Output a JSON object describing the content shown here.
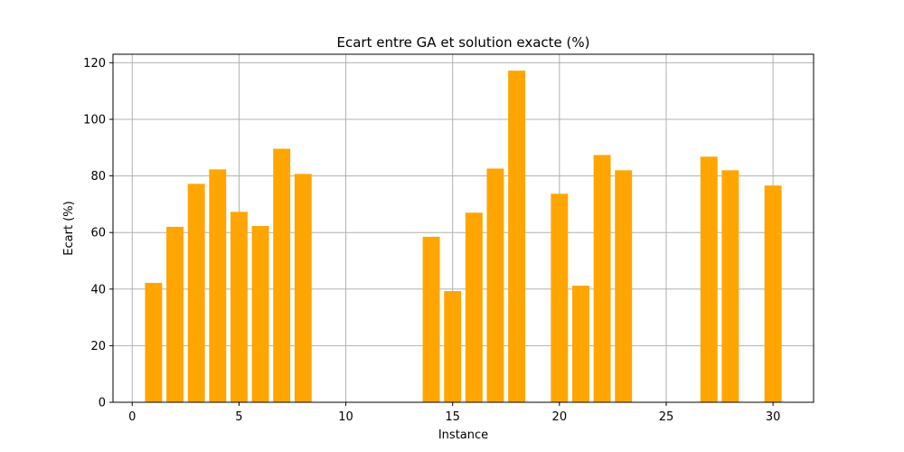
{
  "chart_data": {
    "type": "bar",
    "title": "Ecart entre GA et solution exacte (%)",
    "xlabel": "Instance",
    "ylabel": "Ecart (%)",
    "x": [
      1,
      2,
      3,
      4,
      5,
      6,
      7,
      8,
      14,
      15,
      16,
      17,
      18,
      20,
      21,
      22,
      23,
      27,
      28,
      30
    ],
    "values": [
      42.2,
      62.0,
      77.2,
      82.3,
      67.3,
      62.3,
      89.6,
      80.7,
      58.5,
      39.3,
      67.0,
      82.6,
      117.2,
      73.7,
      41.2,
      87.4,
      82.0,
      86.8,
      82.0,
      76.6
    ],
    "xlim": [
      -0.9,
      31.9
    ],
    "ylim": [
      0,
      123
    ],
    "xticks": [
      "0",
      "5",
      "10",
      "15",
      "20",
      "25",
      "30"
    ],
    "yticks": [
      "0",
      "20",
      "40",
      "60",
      "80",
      "100",
      "120"
    ],
    "bar_color": "#ffa500",
    "grid": true
  }
}
